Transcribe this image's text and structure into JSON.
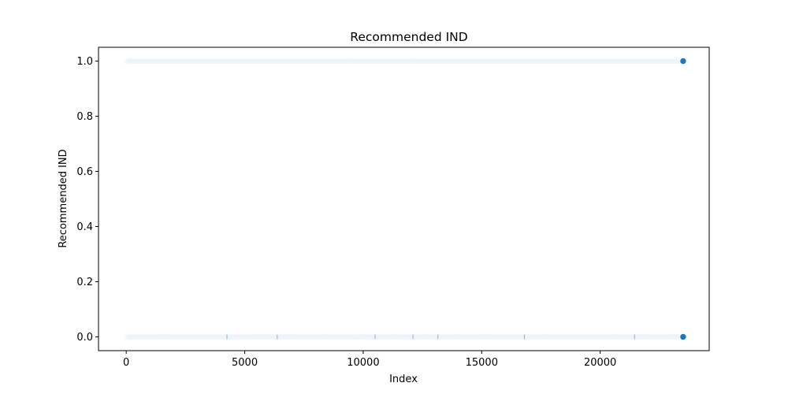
{
  "chart_data": {
    "type": "scatter",
    "title": "Recommended IND",
    "xlabel": "Index",
    "ylabel": "Recommended IND",
    "xlim": [
      -1170,
      24600
    ],
    "ylim": [
      -0.05,
      1.05
    ],
    "xticks": [
      0,
      5000,
      10000,
      15000,
      20000
    ],
    "yticks": [
      0.0,
      0.2,
      0.4,
      0.6,
      0.8,
      1.0
    ],
    "ytick_labels": [
      "0.0",
      "0.2",
      "0.4",
      "0.6",
      "0.8",
      "1.0"
    ],
    "grid": false,
    "legend": "none",
    "x_range": [
      0,
      23500
    ],
    "y_levels": [
      0,
      1
    ],
    "marker_color": "#1f77b4",
    "edge_color": "#ffffff",
    "endpoints": [
      {
        "x": 23500,
        "y": 1
      },
      {
        "x": 23500,
        "y": 0
      }
    ],
    "notable_points_y0": [
      4250,
      6370,
      10500,
      12100,
      13150,
      16800,
      21450
    ]
  }
}
